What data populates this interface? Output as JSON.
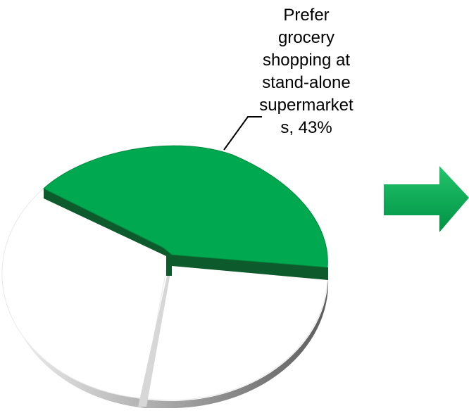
{
  "chart_data": {
    "type": "pie",
    "style": "3d",
    "slices": [
      {
        "label": "Prefer grocery shopping at stand-alone supermarket s",
        "value": 43,
        "color": "#00a84f",
        "label_text": "Prefer\ngrocery\nshopping at\nstand-alone\nsupermarket\ns, 43%"
      },
      {
        "label": "",
        "value": 57,
        "color": "#ffffff",
        "label_text": ""
      }
    ]
  },
  "colors": {
    "green": "#00a84f",
    "green_dark": "#0d5a2c",
    "white_side_light": "#e6e6e6",
    "white_side_dark": "#6f6f6f"
  },
  "decor": {
    "arrow_icon": "right-arrow-icon",
    "arrow_color": "#00a84f"
  }
}
